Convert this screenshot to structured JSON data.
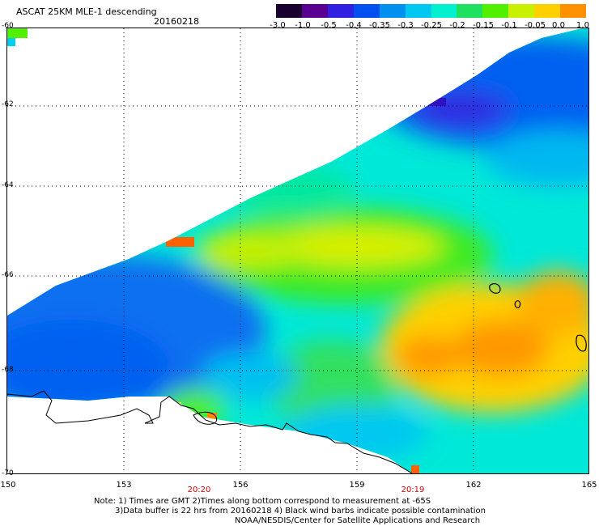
{
  "header": {
    "title": "ASCAT 25KM MLE-1 descending",
    "date": "20160218"
  },
  "colorbar": {
    "labels": [
      "-3.0",
      "-1.0",
      "-0.5",
      "-0.4",
      "-0.35",
      "-0.3",
      "-0.25",
      "-0.2",
      "-0.15",
      "-0.1",
      "-0.05",
      "0.0",
      "1.0"
    ],
    "colors": [
      "#1a0030",
      "#5a0090",
      "#3020e0",
      "#0050f0",
      "#0090f0",
      "#00c8f0",
      "#00f0d0",
      "#20e060",
      "#50f000",
      "#c8f000",
      "#ffd000",
      "#ff9000",
      "#ff3000"
    ]
  },
  "map": {
    "lat_labels": [
      "-60",
      "-62",
      "-64",
      "-66",
      "-68",
      "-70"
    ],
    "lon_labels": [
      "150",
      "153",
      "156",
      "159",
      "162",
      "165"
    ],
    "time_labels": [
      "20:20",
      "20:19"
    ]
  },
  "footer": {
    "line1": "Note: 1) Times are GMT 2)Times along bottom correspond to measurement at -65S",
    "line2": "3)Data buffer is 22 hrs from 20160218 4) Black wind barbs indicate possible contamination",
    "line3": "NOAA/NESDIS/Center for Satellite Applications and Research"
  }
}
